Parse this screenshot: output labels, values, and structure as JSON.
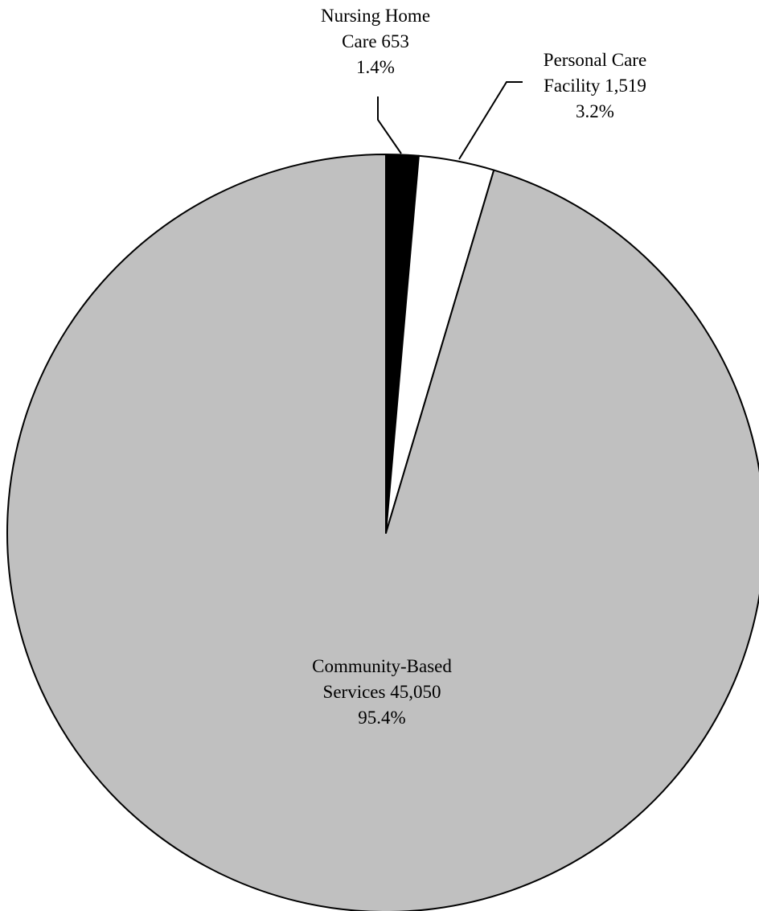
{
  "chart_data": {
    "type": "pie",
    "start_angle_deg": 0,
    "direction": "clockwise",
    "slices": [
      {
        "name": "Nursing Home Care",
        "value": 653,
        "percent": 1.4,
        "color": "#000000",
        "label_lines": [
          "Nursing Home",
          "Care 653",
          "1.4%"
        ]
      },
      {
        "name": "Personal Care Facility",
        "value": 1519,
        "percent": 3.2,
        "color": "#ffffff",
        "label_lines": [
          "Personal Care",
          "Facility 1,519",
          "3.2%"
        ]
      },
      {
        "name": "Community-Based Services",
        "value": 45050,
        "percent": 95.4,
        "color": "#c0c0c0",
        "label_lines": [
          "Community-Based",
          "Services 45,050",
          "95.4%"
        ]
      }
    ],
    "outline_color": "#000000",
    "legend": "none"
  }
}
